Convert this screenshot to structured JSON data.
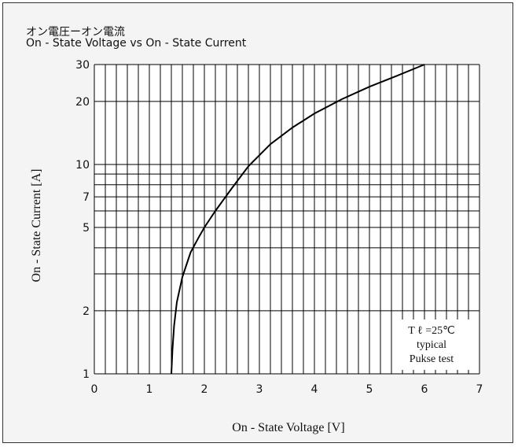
{
  "chart_data": {
    "type": "line",
    "title": "オン電圧ーオン電流",
    "subtitle": "On - State Voltage vs On - State Current",
    "xlabel": "On - State Voltage  [V]",
    "ylabel": "On - State Current  [A]",
    "xlim": [
      0,
      7
    ],
    "ylim": [
      1,
      30
    ],
    "yscale": "log",
    "x_ticks": [
      "0",
      "1",
      "2",
      "3",
      "4",
      "5",
      "6",
      "7"
    ],
    "y_ticks": [
      "1",
      "2",
      "5",
      "7",
      "10",
      "20",
      "30"
    ],
    "y_tick_values": [
      1,
      2,
      5,
      7,
      10,
      20,
      30
    ],
    "x_grid_step": 0.2,
    "y_grid_values": [
      1,
      2,
      3,
      4,
      5,
      6,
      7,
      8,
      9,
      10,
      20,
      30
    ],
    "grid": true,
    "annotation": [
      "T ℓ =25℃",
      "typical",
      "Pukse test"
    ],
    "series": [
      {
        "x": [
          1.4,
          1.42,
          1.45,
          1.5,
          1.6,
          1.75,
          1.9,
          2.0,
          2.2,
          2.5,
          2.8,
          3.2,
          3.6,
          4.0,
          4.5,
          5.0,
          5.5,
          6.0
        ],
        "y": [
          1.0,
          1.3,
          1.7,
          2.2,
          2.9,
          3.8,
          4.5,
          5.0,
          6.0,
          7.7,
          9.8,
          12.5,
          15.0,
          17.5,
          20.5,
          23.5,
          26.5,
          30.0
        ]
      }
    ]
  },
  "colors": {
    "grid": "#000000",
    "curve": "#000000",
    "background": "#f4f4f4"
  }
}
